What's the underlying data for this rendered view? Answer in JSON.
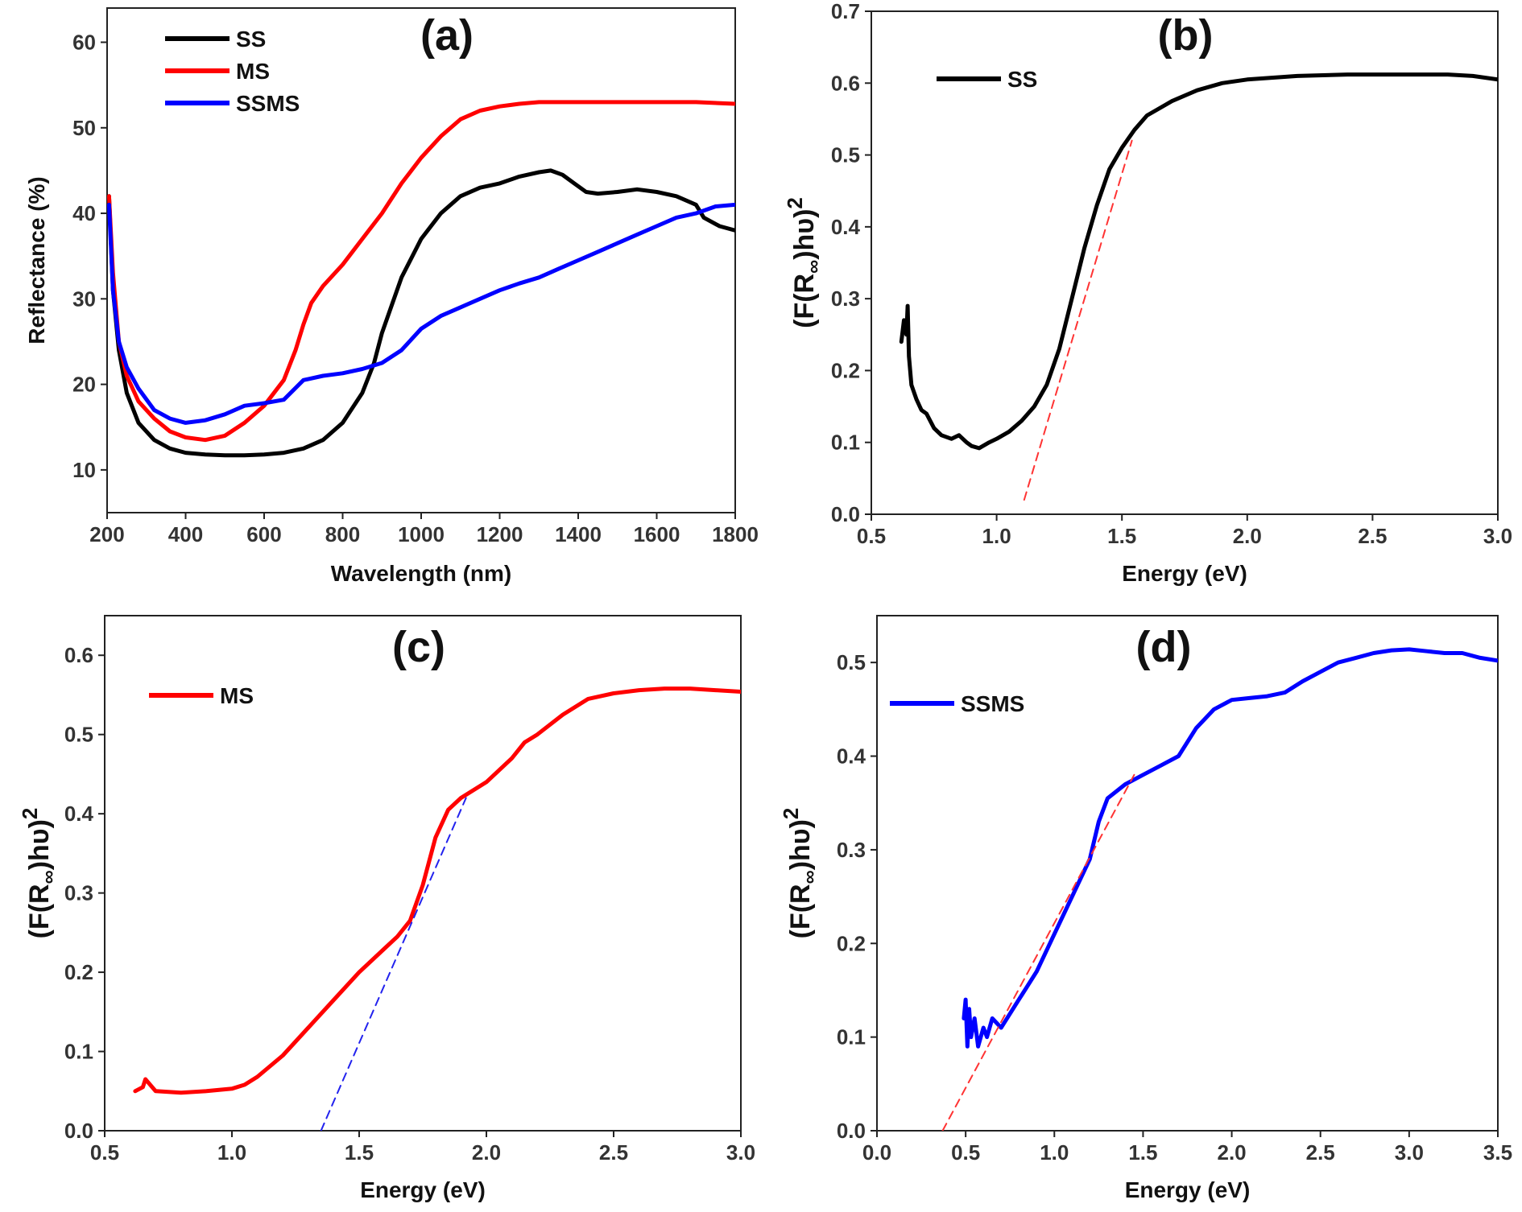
{
  "chart_data": [
    {
      "id": "a",
      "type": "line",
      "panel_label": "(a)",
      "xlabel": "Wavelength (nm)",
      "ylabel": "Reflectance (%)",
      "xlim": [
        200,
        1800
      ],
      "ylim": [
        5,
        64
      ],
      "xticks": [
        200,
        400,
        600,
        800,
        1000,
        1200,
        1400,
        1600,
        1800
      ],
      "yticks": [
        10,
        20,
        30,
        40,
        50,
        60
      ],
      "legend_position": "top-left",
      "series": [
        {
          "name": "SS",
          "color": "#000000",
          "x": [
            205,
            215,
            230,
            250,
            280,
            320,
            360,
            400,
            450,
            500,
            550,
            600,
            650,
            700,
            750,
            800,
            850,
            880,
            900,
            950,
            1000,
            1050,
            1100,
            1150,
            1200,
            1250,
            1300,
            1330,
            1360,
            1390,
            1420,
            1450,
            1500,
            1550,
            1600,
            1650,
            1700,
            1720,
            1760,
            1800
          ],
          "y": [
            42,
            31,
            24,
            19,
            15.5,
            13.5,
            12.5,
            12,
            11.8,
            11.7,
            11.7,
            11.8,
            12,
            12.5,
            13.5,
            15.5,
            19,
            22.5,
            26,
            32.5,
            37,
            40,
            42,
            43,
            43.5,
            44.3,
            44.8,
            45,
            44.5,
            43.5,
            42.5,
            42.3,
            42.5,
            42.8,
            42.5,
            42,
            41,
            39.5,
            38.5,
            38
          ]
        },
        {
          "name": "MS",
          "color": "#ff0000",
          "x": [
            205,
            215,
            230,
            250,
            280,
            320,
            360,
            400,
            450,
            500,
            550,
            600,
            650,
            680,
            700,
            720,
            750,
            800,
            850,
            900,
            950,
            1000,
            1050,
            1100,
            1150,
            1200,
            1250,
            1300,
            1350,
            1400,
            1500,
            1600,
            1700,
            1800
          ],
          "y": [
            42,
            33,
            25,
            21,
            18,
            16,
            14.5,
            13.8,
            13.5,
            14,
            15.5,
            17.5,
            20.5,
            24,
            27,
            29.5,
            31.5,
            34,
            37,
            40,
            43.5,
            46.5,
            49,
            51,
            52,
            52.5,
            52.8,
            53,
            53,
            53,
            53,
            53,
            53,
            52.8
          ]
        },
        {
          "name": "SSMS",
          "color": "#0000ff",
          "x": [
            205,
            215,
            230,
            250,
            280,
            320,
            360,
            400,
            450,
            500,
            550,
            600,
            650,
            700,
            750,
            800,
            850,
            900,
            950,
            1000,
            1050,
            1100,
            1150,
            1200,
            1250,
            1300,
            1350,
            1400,
            1450,
            1500,
            1550,
            1600,
            1650,
            1700,
            1750,
            1800
          ],
          "y": [
            41,
            31,
            25,
            22,
            19.5,
            17,
            16,
            15.5,
            15.8,
            16.5,
            17.5,
            17.8,
            18.2,
            20.5,
            21,
            21.3,
            21.8,
            22.5,
            24,
            26.5,
            28,
            29,
            30,
            31,
            31.8,
            32.5,
            33.5,
            34.5,
            35.5,
            36.5,
            37.5,
            38.5,
            39.5,
            40,
            40.8,
            41
          ]
        }
      ]
    },
    {
      "id": "b",
      "type": "line",
      "panel_label": "(b)",
      "xlabel": "Energy (eV)",
      "ylabel": "(F(R∞)hυ)²",
      "xlim": [
        0.5,
        3.0
      ],
      "ylim": [
        0,
        0.7
      ],
      "xticks": [
        0.5,
        1.0,
        1.5,
        2.0,
        2.5,
        3.0
      ],
      "yticks": [
        0.0,
        0.1,
        0.2,
        0.3,
        0.4,
        0.5,
        0.6,
        0.7
      ],
      "legend_position": "top-left",
      "series": [
        {
          "name": "SS",
          "color": "#000000",
          "x": [
            0.62,
            0.63,
            0.64,
            0.645,
            0.65,
            0.66,
            0.68,
            0.7,
            0.72,
            0.75,
            0.78,
            0.82,
            0.85,
            0.88,
            0.9,
            0.93,
            0.97,
            1.0,
            1.05,
            1.1,
            1.15,
            1.2,
            1.25,
            1.3,
            1.35,
            1.4,
            1.45,
            1.5,
            1.55,
            1.6,
            1.7,
            1.8,
            1.9,
            2.0,
            2.2,
            2.4,
            2.6,
            2.8,
            2.9,
            3.0
          ],
          "y": [
            0.24,
            0.27,
            0.25,
            0.29,
            0.22,
            0.18,
            0.16,
            0.145,
            0.14,
            0.12,
            0.11,
            0.105,
            0.11,
            0.1,
            0.095,
            0.092,
            0.1,
            0.105,
            0.115,
            0.13,
            0.15,
            0.18,
            0.23,
            0.3,
            0.37,
            0.43,
            0.48,
            0.51,
            0.535,
            0.555,
            0.575,
            0.59,
            0.6,
            0.605,
            0.61,
            0.612,
            0.612,
            0.612,
            0.61,
            0.605
          ]
        },
        {
          "name": "",
          "color": "#ff3333",
          "dashed": true,
          "x": [
            1.11,
            1.54
          ],
          "y": [
            0.02,
            0.52
          ]
        }
      ]
    },
    {
      "id": "c",
      "type": "line",
      "panel_label": "(c)",
      "xlabel": "Energy (eV)",
      "ylabel": "(F(R∞)hυ)²",
      "xlim": [
        0.5,
        3.0
      ],
      "ylim": [
        0,
        0.65
      ],
      "xticks": [
        0.5,
        1.0,
        1.5,
        2.0,
        2.5,
        3.0
      ],
      "yticks": [
        0.0,
        0.1,
        0.2,
        0.3,
        0.4,
        0.5,
        0.6
      ],
      "legend_position": "top-left",
      "series": [
        {
          "name": "MS",
          "color": "#ff0000",
          "x": [
            0.62,
            0.65,
            0.66,
            0.7,
            0.8,
            0.9,
            1.0,
            1.05,
            1.1,
            1.2,
            1.3,
            1.4,
            1.5,
            1.6,
            1.65,
            1.7,
            1.75,
            1.8,
            1.85,
            1.9,
            2.0,
            2.1,
            2.15,
            2.2,
            2.3,
            2.4,
            2.5,
            2.6,
            2.7,
            2.8,
            2.9,
            3.0
          ],
          "y": [
            0.05,
            0.055,
            0.065,
            0.05,
            0.048,
            0.05,
            0.053,
            0.058,
            0.068,
            0.095,
            0.13,
            0.165,
            0.2,
            0.23,
            0.245,
            0.265,
            0.31,
            0.37,
            0.405,
            0.42,
            0.44,
            0.47,
            0.49,
            0.5,
            0.525,
            0.545,
            0.552,
            0.556,
            0.558,
            0.558,
            0.556,
            0.554
          ]
        },
        {
          "name": "",
          "color": "#2222ee",
          "dashed": true,
          "x": [
            1.35,
            1.92
          ],
          "y": [
            0.0,
            0.42
          ]
        }
      ]
    },
    {
      "id": "d",
      "type": "line",
      "panel_label": "(d)",
      "xlabel": "Energy (eV)",
      "ylabel": "(F(R∞)hυ)²",
      "xlim": [
        0.0,
        3.5
      ],
      "ylim": [
        0,
        0.55
      ],
      "xticks": [
        0.0,
        0.5,
        1.0,
        1.5,
        2.0,
        2.5,
        3.0,
        3.5
      ],
      "yticks": [
        0.0,
        0.1,
        0.2,
        0.3,
        0.4,
        0.5
      ],
      "legend_position": "top-left",
      "series": [
        {
          "name": "SSMS",
          "color": "#0000ff",
          "x": [
            0.49,
            0.5,
            0.51,
            0.52,
            0.53,
            0.55,
            0.57,
            0.6,
            0.62,
            0.65,
            0.7,
            0.8,
            0.9,
            1.0,
            1.1,
            1.2,
            1.25,
            1.3,
            1.4,
            1.5,
            1.6,
            1.7,
            1.75,
            1.8,
            1.9,
            2.0,
            2.1,
            2.2,
            2.3,
            2.4,
            2.5,
            2.6,
            2.7,
            2.8,
            2.9,
            3.0,
            3.1,
            3.2,
            3.3,
            3.4,
            3.5
          ],
          "y": [
            0.12,
            0.14,
            0.09,
            0.13,
            0.1,
            0.12,
            0.09,
            0.11,
            0.1,
            0.12,
            0.11,
            0.14,
            0.17,
            0.21,
            0.25,
            0.29,
            0.33,
            0.355,
            0.37,
            0.38,
            0.39,
            0.4,
            0.415,
            0.43,
            0.45,
            0.46,
            0.462,
            0.464,
            0.468,
            0.48,
            0.49,
            0.5,
            0.505,
            0.51,
            0.513,
            0.514,
            0.512,
            0.51,
            0.51,
            0.505,
            0.502
          ]
        },
        {
          "name": "",
          "color": "#ff3333",
          "dashed": true,
          "x": [
            0.37,
            1.45
          ],
          "y": [
            0.0,
            0.38
          ]
        }
      ]
    }
  ]
}
